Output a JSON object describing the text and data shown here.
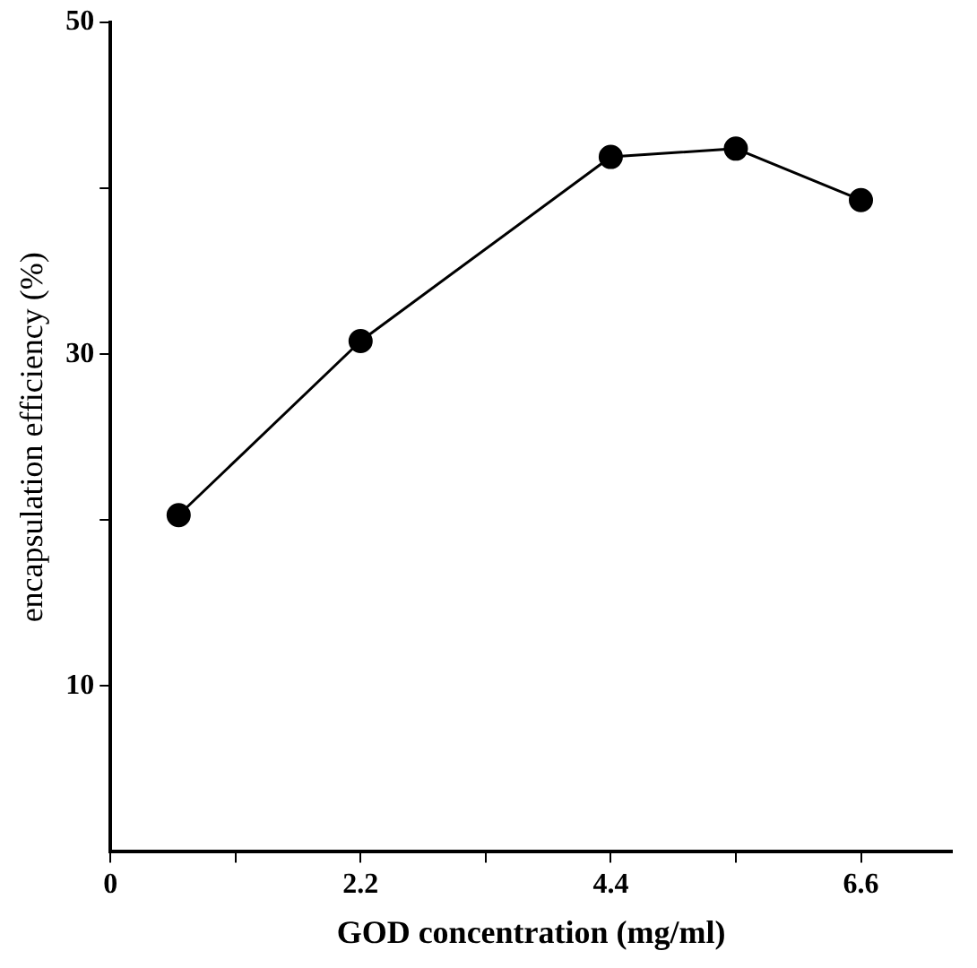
{
  "chart_data": {
    "type": "line",
    "xlabel": "GOD concentration (mg/ml)",
    "ylabel": "encapsulation efficiency (%)",
    "x": [
      0.6,
      2.2,
      4.4,
      5.5,
      6.6
    ],
    "series": [
      {
        "color": "#000000",
        "values": [
          20.3,
          30.8,
          41.9,
          42.4,
          39.3
        ]
      }
    ],
    "xlim": [
      0,
      7.4
    ],
    "xticks": [
      0,
      {
        "value": 1.1,
        "label": null
      },
      2.2,
      {
        "value": 3.3,
        "label": null
      },
      4.4,
      {
        "value": 5.5,
        "label": null
      },
      6.6
    ],
    "ylim": [
      0,
      50
    ],
    "yticks": [
      10,
      {
        "value": 20,
        "label": null
      },
      30,
      {
        "value": 40,
        "label": null
      },
      50
    ],
    "grid": false,
    "legend": false,
    "marker": "circle",
    "line_style": "solid"
  }
}
